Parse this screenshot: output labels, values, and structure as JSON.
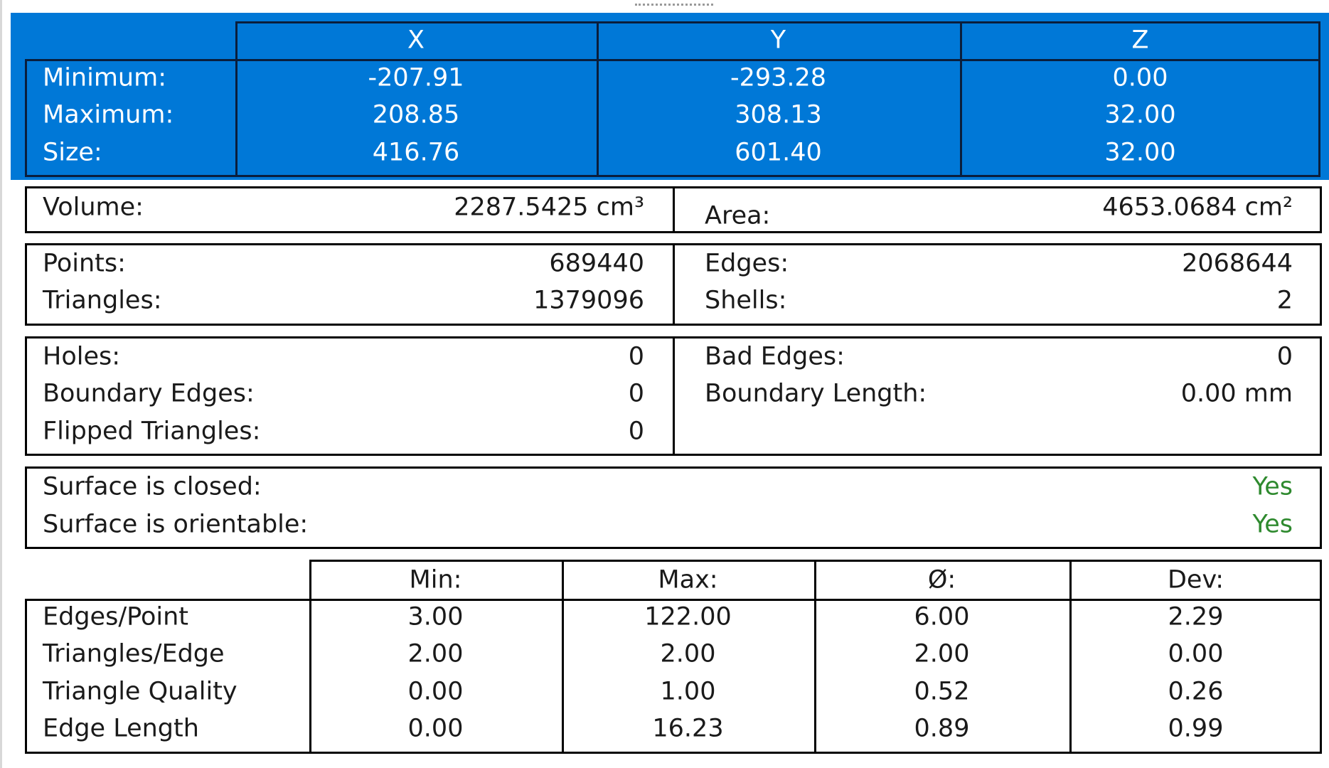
{
  "bbox": {
    "headers": [
      "X",
      "Y",
      "Z"
    ],
    "rows": [
      {
        "label": "Minimum:",
        "values": [
          "-207.91",
          "-293.28",
          "0.00"
        ]
      },
      {
        "label": "Maximum:",
        "values": [
          "208.85",
          "308.13",
          "32.00"
        ]
      },
      {
        "label": "Size:",
        "values": [
          "416.76",
          "601.40",
          "32.00"
        ]
      }
    ]
  },
  "measures": {
    "left": {
      "label": "Volume:",
      "value": "2287.5425 cm³"
    },
    "right": {
      "label": "Area:",
      "value": "4653.0684 cm²"
    }
  },
  "counts": {
    "left": [
      {
        "label": "Points:",
        "value": "689440"
      },
      {
        "label": "Triangles:",
        "value": "1379096"
      }
    ],
    "right": [
      {
        "label": "Edges:",
        "value": "2068644"
      },
      {
        "label": "Shells:",
        "value": "2"
      }
    ]
  },
  "defects": {
    "left": [
      {
        "label": "Holes:",
        "value": "0"
      },
      {
        "label": "Boundary Edges:",
        "value": "0"
      },
      {
        "label": "Flipped Triangles:",
        "value": "0"
      }
    ],
    "right": [
      {
        "label": "Bad Edges:",
        "value": "0"
      },
      {
        "label": "Boundary Length:",
        "value": "0.00 mm"
      }
    ]
  },
  "checks": [
    {
      "label": "Surface is closed:",
      "value": "Yes"
    },
    {
      "label": "Surface is orientable:",
      "value": "Yes"
    }
  ],
  "stats": {
    "headers": [
      "Min:",
      "Max:",
      "Ø:",
      "Dev:"
    ],
    "rows": [
      {
        "label": "Edges/Point",
        "values": [
          "3.00",
          "122.00",
          "6.00",
          "2.29"
        ]
      },
      {
        "label": "Triangles/Edge",
        "values": [
          "2.00",
          "2.00",
          "2.00",
          "0.00"
        ]
      },
      {
        "label": "Triangle Quality",
        "values": [
          "0.00",
          "1.00",
          "0.52",
          "0.26"
        ]
      },
      {
        "label": "Edge Length",
        "values": [
          "0.00",
          "16.23",
          "0.89",
          "0.99"
        ]
      }
    ]
  }
}
